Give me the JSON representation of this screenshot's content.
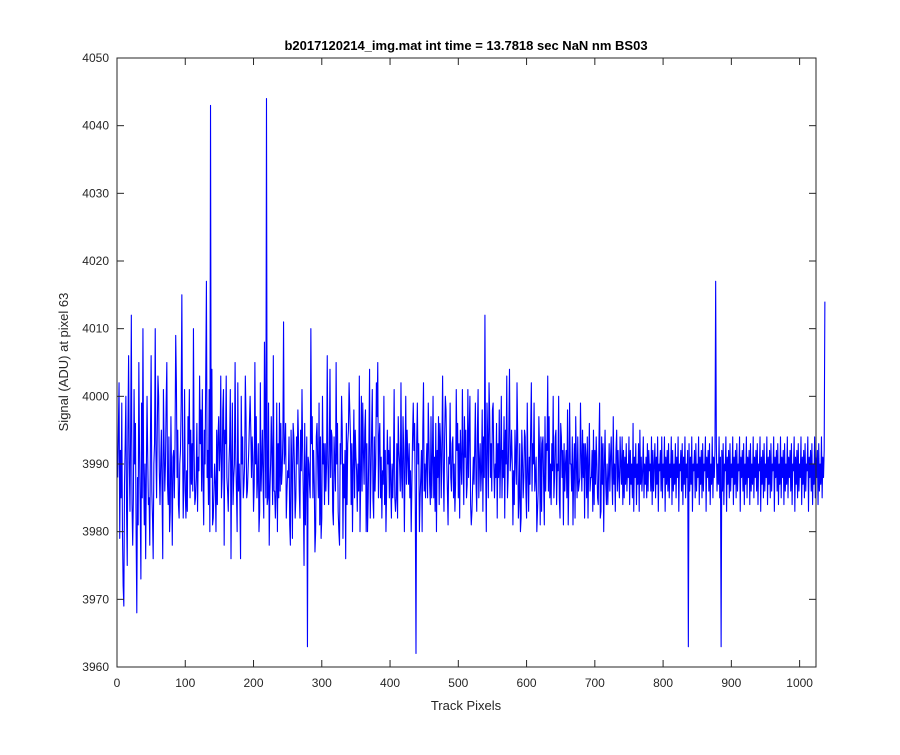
{
  "chart_data": {
    "type": "line",
    "title": "b2017120214_img.mat int time = 13.7818 sec  NaN nm BS03",
    "xlabel": "Track Pixels",
    "ylabel": "Signal (ADU) at pixel 63",
    "xlim": [
      0,
      1024
    ],
    "ylim": [
      3960,
      4050
    ],
    "xticks": [
      0,
      100,
      200,
      300,
      400,
      500,
      600,
      700,
      800,
      900,
      1000
    ],
    "yticks": [
      3960,
      3970,
      3980,
      3990,
      4000,
      4010,
      4020,
      4030,
      4040,
      4050
    ],
    "grid": false,
    "legend": "none",
    "series_color": "#0000ff",
    "series": [
      {
        "values": [
          3988,
          3995,
          4002,
          3979,
          3992,
          3985,
          3999,
          3980,
          3972,
          3969,
          3987,
          3993,
          4000,
          3983,
          3975,
          3995,
          4006,
          3990,
          3983,
          3995,
          4012,
          3984,
          3978,
          3985,
          4001,
          3990,
          3996,
          3980,
          3968,
          3988,
          3981,
          4005,
          3992,
          3984,
          3973,
          3999,
          3985,
          4010,
          3989,
          3981,
          3990,
          3976,
          3989,
          4000,
          3991,
          3984,
          3985,
          3978,
          3994,
          4006,
          3986,
          3982,
          3976,
          3990,
          3993,
          4010,
          3992,
          3985,
          3995,
          4003,
          4000,
          3989,
          3984,
          3990,
          3995,
          3986,
          3976,
          4001,
          3993,
          3986,
          3990,
          3999,
          4005,
          3987,
          3984,
          3994,
          3980,
          3983,
          3997,
          3988,
          3978,
          3991,
          3992,
          3985,
          3993,
          4009,
          4002,
          3988,
          3995,
          3984,
          3982,
          3990,
          3992,
          3999,
          4015,
          3994,
          3982,
          3988,
          4001,
          3986,
          3982,
          3989,
          3983,
          3997,
          3993,
          4001,
          3985,
          3995,
          3987,
          3993,
          3986,
          4010,
          3992,
          3984,
          3985,
          3988,
          3996,
          3983,
          3991,
          3989,
          4003,
          3993,
          3998,
          3986,
          4001,
          3988,
          3981,
          3995,
          3990,
          4003,
          3999,
          3988,
          3992,
          3984,
          4001,
          3980,
          3993,
          3988,
          4004,
          3981,
          3982,
          3986,
          3990,
          3987,
          3980,
          3995,
          3984,
          3994,
          3997,
          3989,
          3992,
          4003,
          3985,
          3988,
          3998,
          4001,
          3978,
          3995,
          3993,
          4003,
          3988,
          3986,
          3983,
          3990,
          3993,
          4001,
          3976,
          3990,
          3999,
          3984,
          3988,
          3990,
          4005,
          3991,
          3986,
          3980,
          4002,
          3986,
          3990,
          3985,
          3976,
          4000,
          3990,
          3994,
          3985,
          3987,
          3990,
          4003,
          3997,
          3985,
          3986,
          3989,
          3992,
          3996,
          4000,
          3995,
          3988,
          3994,
          3991,
          3983,
          3987,
          4005,
          3990,
          3997,
          3985,
          3988,
          3993,
          3980,
          3983,
          4002,
          3986,
          3990,
          3995,
          3987,
          3982,
          4008,
          3996,
          3985,
          3992,
          3984,
          3985,
          3999,
          3978,
          3986,
          3990,
          3997,
          3991,
          3984,
          4006,
          3986,
          3986,
          3982,
          3986,
          3999,
          3980,
          3993,
          3985,
          3999,
          3986,
          3996,
          3987,
          3989,
          3994,
          4011,
          3990,
          3992,
          3996,
          3982,
          3986,
          3989,
          3988,
          3994,
          3981,
          3978,
          3995,
          3990,
          3979,
          3996,
          3994,
          3989,
          3982,
          3985,
          3994,
          3990,
          3998,
          3993,
          3986,
          3982,
          3995,
          3989,
          4001,
          3992,
          3985,
          3975,
          3996,
          3981,
          3989,
          3994,
          3986,
          3991,
          3990,
          3987,
          3985,
          4010,
          3993,
          3997,
          3985,
          3992,
          3987,
          3977,
          3980,
          3994,
          3996,
          3990,
          3985,
          3999,
          3981,
          3994,
          3979,
          3982,
          4000,
          3990,
          3993,
          3984,
          3993,
          3986,
          3990,
          4006,
          3990,
          3984,
          3992,
          4004,
          3988,
          3995,
          3994,
          3983,
          3981,
          3994,
          3990,
          3986,
          4005,
          3990,
          3996,
          3983,
          3980,
          3978,
          3993,
          3990,
          4000,
          3995,
          3979,
          3990,
          3985,
          3992,
          3976,
          3996,
          3984,
          3993,
          3995,
          4002,
          3998,
          3994,
          3984,
          3993,
          3980,
          3990,
          3998,
          3985,
          3995,
          3991,
          3989,
          3983,
          3990,
          3986,
          4003,
          3980,
          3987,
          4000,
          3986,
          3999,
          3992,
          3987,
          3995,
          3998,
          3980,
          3993,
          3980,
          3985,
          3993,
          4004,
          3982,
          3988,
          3995,
          4001,
          3985,
          3982,
          3994,
          3986,
          3990,
          4002,
          3997,
          4005,
          3985,
          3994,
          3996,
          3985,
          3991,
          3982,
          3989,
          3987,
          4000,
          3984,
          3992,
          3980,
          3986,
          3995,
          3990,
          3992,
          3985,
          3994,
          3987,
          3982,
          3990,
          3985,
          3990,
          4001,
          3985,
          3983,
          3985,
          3993,
          3982,
          3997,
          3992,
          3990,
          3986,
          4002,
          3988,
          3985,
          3997,
          3992,
          3980,
          3990,
          4000,
          3987,
          3995,
          3991,
          3987,
          3993,
          3985,
          3989,
          3980,
          3987,
          3994,
          3999,
          3992,
          3996,
          3984,
          3988,
          3993,
          3999,
          3990,
          3993,
          3980,
          3985,
          3988,
          3992,
          3980,
          3995,
          4002,
          3986,
          3990,
          3985,
          3990,
          3993,
          3985,
          3999,
          3993,
          3987,
          3984,
          3997,
          3985,
          3990,
          4000,
          3985,
          3991,
          3983,
          3996,
          3980,
          3992,
          3988,
          3997,
          3984,
          3996,
          3993,
          3985,
          3993,
          4003,
          3989,
          3983,
          3994,
          4000,
          3998,
          3991,
          3986,
          3981,
          3991,
          3990,
          3999,
          3988,
          3986,
          3993,
          3994,
          3985,
          3990,
          3983,
          3987,
          4001,
          3992,
          3996,
          3985,
          3993,
          3982,
          3995,
          3990,
          3987,
          4001,
          3991,
          3984,
          3997,
          3991,
          3995,
          3985,
          3987,
          4001,
          3988,
          3995,
          4000,
          3984,
          3981,
          3983,
          3987,
          3991,
          3987,
          3992,
          3999,
          3987,
          3983,
          3995,
          4001,
          3985,
          3990,
          3993,
          3986,
          3989,
          3998,
          3983,
          3994,
          3988,
          4012,
          3990,
          3980,
          3999,
          3994,
          3985,
          4002,
          3997,
          3988,
          3993,
          3986,
          3998,
          3999,
          3990,
          3985,
          3990,
          3988,
          3996,
          3982,
          3993,
          3988,
          3998,
          3985,
          3991,
          4000,
          3985,
          3992,
          3988,
          3997,
          3982,
          3995,
          3990,
          4003,
          3985,
          3988,
          3995,
          4004,
          3989,
          3991,
          3995,
          3990,
          3981,
          3989,
          3984,
          3995,
          3991,
          3987,
          4002,
          3994,
          3982,
          3985,
          3993,
          3980,
          3982,
          3995,
          3991,
          3985,
          3988,
          3995,
          3994,
          3986,
          3982,
          3999,
          3989,
          3983,
          3991,
          3987,
          3995,
          4002,
          3986,
          3993,
          3990,
          3999,
          3986,
          3988,
          3991,
          3980,
          3983,
          3986,
          3997,
          3992,
          3981,
          3994,
          3983,
          3993,
          3994,
          3987,
          3981,
          3997,
          3986,
          3993,
          3992,
          4003,
          3986,
          3997,
          3985,
          3990,
          3984,
          3993,
          3989,
          4000,
          3985,
          3988,
          3994,
          3995,
          3984,
          3990,
          3989,
          4000,
          3985,
          3982,
          3996,
          3994,
          3988,
          3992,
          3981,
          3993,
          3986,
          3990,
          3992,
          3985,
          3998,
          3981,
          3988,
          3999,
          3990,
          3990,
          3986,
          3994,
          3981,
          3989,
          3993,
          3982,
          3997,
          3990,
          3985,
          3994,
          3986,
          3987,
          3988,
          3999,
          3991,
          3986,
          3995,
          3988,
          3993,
          3982,
          3993,
          3991,
          3985,
          3994,
          3982,
          3990,
          3996,
          3986,
          3988,
          3988,
          3992,
          3983,
          3995,
          3984,
          3992,
          3987,
          3994,
          3990,
          3985,
          3984,
          3993,
          3999,
          3982,
          3983,
          3994,
          3987,
          3993,
          3980,
          3990,
          3995,
          3987,
          3984,
          3990,
          3984,
          3988,
          3993,
          3986,
          3991,
          3994,
          3988,
          3984,
          3997,
          3987,
          3990,
          3983,
          3992,
          3995,
          3986,
          3992,
          3988,
          3985,
          3994,
          3990,
          3987,
          3994,
          3984,
          3992,
          3985,
          3991,
          3987,
          3993,
          3986,
          3990,
          3988,
          3994,
          3984,
          3992,
          3987,
          3990,
          3985,
          3996,
          3983,
          3991,
          3988,
          3993,
          3984,
          3990,
          3987,
          3993,
          3983,
          3995,
          3987,
          3991,
          3986,
          3989,
          3994,
          3985,
          3990,
          3987,
          3991,
          3985,
          3993,
          3986,
          3992,
          3989,
          3990,
          3986,
          3994,
          3984,
          3992,
          3986,
          3990,
          3993,
          3985,
          3991,
          3987,
          3994,
          3983,
          3990,
          3989,
          3992,
          3986,
          3994,
          3985,
          3990,
          3988,
          3994,
          3983,
          3991,
          3987,
          3992,
          3986,
          3993,
          3985,
          3990,
          3988,
          3994,
          3984,
          3992,
          3986,
          3990,
          3987,
          3993,
          3985,
          3991,
          3988,
          3994,
          3983,
          3990,
          3989,
          3992,
          3986,
          3993,
          3984,
          3991,
          3987,
          3994,
          3985,
          3990,
          3988,
          3992,
          3984,
          3993,
          3986,
          3991,
          3987,
          3994,
          3983,
          3990,
          3989,
          3992,
          3985,
          3993,
          3986,
          3990,
          3988,
          3994,
          3984,
          3991,
          3987,
          3992,
          3985,
          3993,
          3986,
          3990,
          3989,
          3994,
          3983,
          3991,
          3988,
          3992,
          3986,
          3993,
          3984,
          3990,
          3987,
          3994,
          3985,
          3991,
          3988,
          3992,
          3984,
          3993,
          3986,
          3990,
          3987,
          3994,
          3985,
          3991,
          3988,
          3992,
          3986,
          3993,
          3984,
          3990,
          3989,
          3994,
          3983,
          3991,
          3987,
          3992,
          3985,
          3993,
          3986,
          3990,
          3988,
          3994,
          3984,
          3991,
          3987,
          3992,
          3985,
          3993,
          3986,
          3990,
          3989,
          3994,
          3983,
          3991,
          3988,
          3992,
          3986,
          3993,
          3984,
          3990,
          3987,
          3994,
          3985,
          3991,
          3988,
          3992,
          3984,
          3993,
          3986,
          3990,
          3987,
          3994,
          3985,
          3991,
          3988,
          3992,
          3986,
          3993,
          3984,
          3990,
          3989,
          3994,
          3983,
          3991,
          3987,
          3992,
          3985,
          3993,
          3986,
          3990,
          3988,
          3994,
          3984,
          3991,
          3987,
          3992,
          3985,
          3993,
          3986,
          3990,
          3989,
          3994,
          3983,
          3991,
          3988,
          3992,
          3986,
          3993,
          3984,
          3990,
          3987,
          3994,
          3985,
          3991,
          3988,
          3992,
          3984,
          3993,
          3986,
          3990,
          3987,
          3994,
          3985,
          3991,
          3988,
          3992,
          3986,
          3993,
          3984,
          3990,
          3989,
          3994,
          3983,
          3991,
          3987,
          3992,
          3985,
          3993,
          3986,
          3990,
          3988,
          3994,
          3984,
          3991,
          3987,
          3992,
          3985,
          3993,
          3986,
          3990,
          3989,
          3994,
          3983,
          3991,
          3988,
          3992,
          3986,
          3993,
          3984,
          3990,
          3987,
          3994,
          3985,
          3991,
          3988,
          3992,
          3984,
          3993,
          3986,
          3990,
          3987,
          3994,
          3985,
          3991,
          3988,
          3992,
          4014
        ]
      }
    ],
    "spikes": [
      {
        "x": 131,
        "y": 4017
      },
      {
        "x": 137,
        "y": 4043
      },
      {
        "x": 219,
        "y": 4044
      },
      {
        "x": 279,
        "y": 3963
      },
      {
        "x": 438,
        "y": 3962
      },
      {
        "x": 837,
        "y": 3963
      },
      {
        "x": 877,
        "y": 4017
      },
      {
        "x": 885,
        "y": 3963
      }
    ]
  }
}
